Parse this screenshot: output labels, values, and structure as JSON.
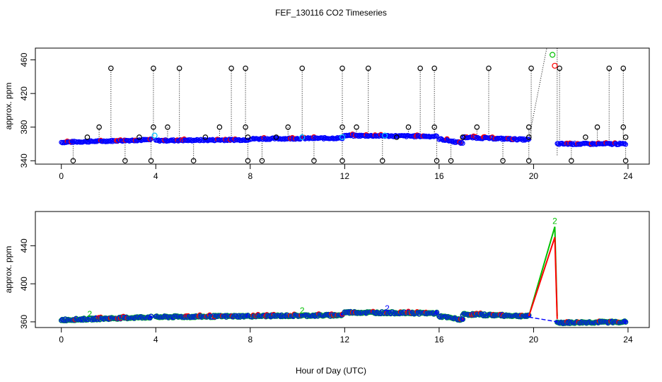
{
  "title": "FEF_130116  CO2 Timeseries",
  "xlabel": "Hour of Day (UTC)",
  "colors": {
    "black": "#000000",
    "red": "#ff0000",
    "green": "#00c000",
    "blue": "#0000ff",
    "cyan": "#00c0ff"
  },
  "chart_data": [
    {
      "type": "scatter",
      "name": "top-panel",
      "ylabel": "approx. ppm",
      "xlim": [
        -1.1,
        24.9
      ],
      "ylim": [
        336,
        474
      ],
      "xticks": [
        0,
        4,
        8,
        12,
        16,
        20,
        24
      ],
      "yticks": [
        340,
        380,
        420,
        460
      ],
      "ytick_labels": [
        "340",
        "380",
        "420",
        "460"
      ],
      "series": [
        {
          "name": "5-min blue/cyan/green",
          "color": "blue",
          "note": "main CO2 trace",
          "segments": [
            {
              "x0": 0.0,
              "x1": 3.8,
              "y0": 362,
              "y1": 365
            },
            {
              "x0": 4.0,
              "x1": 7.9,
              "y0": 364,
              "y1": 365
            },
            {
              "x0": 8.0,
              "x1": 11.9,
              "y0": 366,
              "y1": 367
            },
            {
              "x0": 12.0,
              "x1": 15.9,
              "y0": 370,
              "y1": 369
            },
            {
              "x0": 16.0,
              "x1": 17.0,
              "y0": 366,
              "y1": 361
            },
            {
              "x0": 17.0,
              "x1": 19.8,
              "y0": 368,
              "y1": 365
            },
            {
              "x0": 21.0,
              "x1": 23.9,
              "y0": 360,
              "y1": 360
            }
          ]
        },
        {
          "name": "black spikes",
          "color": "black",
          "points": [
            {
              "x": 0.5,
              "y": 340
            },
            {
              "x": 1.1,
              "y": 368
            },
            {
              "x": 1.6,
              "y": 380
            },
            {
              "x": 2.1,
              "y": 450
            },
            {
              "x": 2.7,
              "y": 340
            },
            {
              "x": 3.3,
              "y": 368
            },
            {
              "x": 3.8,
              "y": 340
            },
            {
              "x": 3.9,
              "y": 380
            },
            {
              "x": 3.9,
              "y": 450
            },
            {
              "x": 4.5,
              "y": 380
            },
            {
              "x": 5.0,
              "y": 450
            },
            {
              "x": 5.6,
              "y": 340
            },
            {
              "x": 6.1,
              "y": 368
            },
            {
              "x": 6.7,
              "y": 380
            },
            {
              "x": 7.2,
              "y": 450
            },
            {
              "x": 7.8,
              "y": 450
            },
            {
              "x": 7.8,
              "y": 380
            },
            {
              "x": 7.9,
              "y": 340
            },
            {
              "x": 7.9,
              "y": 368
            },
            {
              "x": 8.5,
              "y": 340
            },
            {
              "x": 9.1,
              "y": 368
            },
            {
              "x": 9.6,
              "y": 380
            },
            {
              "x": 10.2,
              "y": 450
            },
            {
              "x": 10.7,
              "y": 340
            },
            {
              "x": 11.9,
              "y": 340
            },
            {
              "x": 11.9,
              "y": 380
            },
            {
              "x": 11.9,
              "y": 450
            },
            {
              "x": 12.5,
              "y": 380
            },
            {
              "x": 13.0,
              "y": 450
            },
            {
              "x": 13.6,
              "y": 340
            },
            {
              "x": 14.2,
              "y": 368
            },
            {
              "x": 14.7,
              "y": 380
            },
            {
              "x": 15.2,
              "y": 450
            },
            {
              "x": 15.8,
              "y": 450
            },
            {
              "x": 15.8,
              "y": 380
            },
            {
              "x": 15.9,
              "y": 340
            },
            {
              "x": 16.5,
              "y": 340
            },
            {
              "x": 17.0,
              "y": 368
            },
            {
              "x": 17.6,
              "y": 380
            },
            {
              "x": 18.1,
              "y": 450
            },
            {
              "x": 18.7,
              "y": 340
            },
            {
              "x": 19.8,
              "y": 340
            },
            {
              "x": 19.8,
              "y": 380
            },
            {
              "x": 19.9,
              "y": 450
            },
            {
              "x": 19.8,
              "y": 368
            },
            {
              "x": 21.1,
              "y": 450
            },
            {
              "x": 21.6,
              "y": 340
            },
            {
              "x": 22.2,
              "y": 368
            },
            {
              "x": 22.7,
              "y": 380
            },
            {
              "x": 23.2,
              "y": 450
            },
            {
              "x": 23.8,
              "y": 450
            },
            {
              "x": 23.8,
              "y": 380
            },
            {
              "x": 23.9,
              "y": 340
            },
            {
              "x": 23.9,
              "y": 368
            }
          ]
        },
        {
          "name": "peak",
          "color": "green",
          "points": [
            {
              "x": 20.8,
              "y": 466
            }
          ]
        },
        {
          "name": "peak-red",
          "color": "red",
          "points": [
            {
              "x": 20.9,
              "y": 453
            }
          ]
        }
      ]
    },
    {
      "type": "scatter",
      "name": "bottom-panel",
      "ylabel": "approx. ppm",
      "xlim": [
        -1.1,
        24.9
      ],
      "ylim": [
        354,
        476
      ],
      "xticks": [
        0,
        4,
        8,
        12,
        16,
        20,
        24
      ],
      "yticks": [
        360,
        400,
        440
      ],
      "ytick_labels": [
        "360",
        "400",
        "440"
      ],
      "segments": [
        {
          "x0": 0.0,
          "x1": 3.8,
          "y0": 362,
          "y1": 365
        },
        {
          "x0": 4.0,
          "x1": 7.9,
          "y0": 365,
          "y1": 366
        },
        {
          "x0": 8.0,
          "x1": 11.9,
          "y0": 366,
          "y1": 367
        },
        {
          "x0": 12.0,
          "x1": 15.9,
          "y0": 370,
          "y1": 369
        },
        {
          "x0": 16.0,
          "x1": 17.0,
          "y0": 366,
          "y1": 362
        },
        {
          "x0": 17.0,
          "x1": 19.8,
          "y0": 368,
          "y1": 366
        },
        {
          "x0": 21.0,
          "x1": 23.9,
          "y0": 359,
          "y1": 360
        }
      ],
      "spike": {
        "x_start": 19.8,
        "x_peak": 20.9,
        "x_end": 21.0,
        "green_peak": 460,
        "red_peak": 449,
        "base": 366
      },
      "labels": [
        {
          "x": 20.9,
          "y": 463,
          "text": "2",
          "color": "green"
        },
        {
          "x": 13.8,
          "y": 371,
          "text": "2",
          "color": "blue"
        },
        {
          "x": 1.2,
          "y": 365,
          "text": "2",
          "color": "green"
        },
        {
          "x": 10.2,
          "y": 369,
          "text": "2",
          "color": "green"
        }
      ]
    }
  ]
}
